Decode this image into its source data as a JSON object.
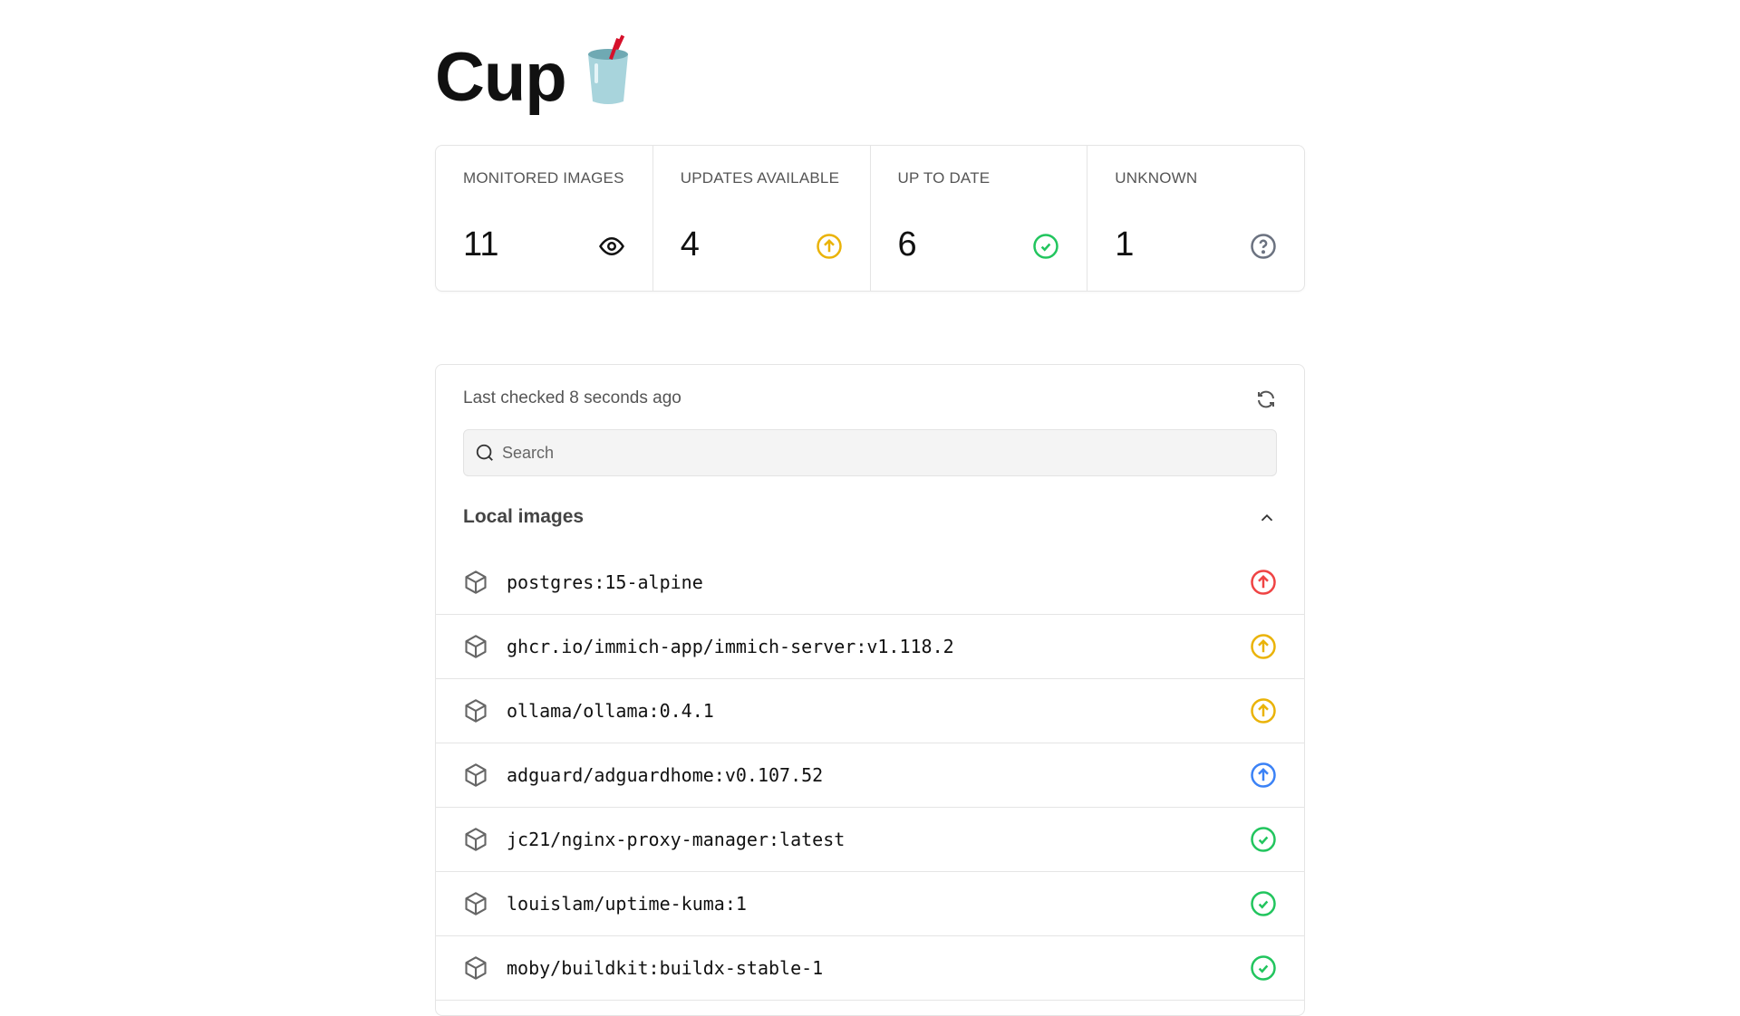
{
  "header": {
    "title": "Cup",
    "logo_emoji": "🥤"
  },
  "stats": [
    {
      "label": "MONITORED IMAGES",
      "value": "11",
      "icon": "eye-icon",
      "color": "#111111"
    },
    {
      "label": "UPDATES AVAILABLE",
      "value": "4",
      "icon": "arrow-up-circle-icon",
      "color": "#eab308"
    },
    {
      "label": "UP TO DATE",
      "value": "6",
      "icon": "check-circle-icon",
      "color": "#22c55e"
    },
    {
      "label": "UNKNOWN",
      "value": "1",
      "icon": "question-circle-icon",
      "color": "#6b7280"
    }
  ],
  "main": {
    "last_checked": "Last checked 8 seconds ago",
    "search_placeholder": "Search",
    "section_title": "Local images",
    "images": [
      {
        "name": "postgres:15-alpine",
        "status": "update-major",
        "color": "#ef4444"
      },
      {
        "name": "ghcr.io/immich-app/immich-server:v1.118.2",
        "status": "update-minor",
        "color": "#eab308"
      },
      {
        "name": "ollama/ollama:0.4.1",
        "status": "update-minor",
        "color": "#eab308"
      },
      {
        "name": "adguard/adguardhome:v0.107.52",
        "status": "update-patch",
        "color": "#3b82f6"
      },
      {
        "name": "jc21/nginx-proxy-manager:latest",
        "status": "up-to-date",
        "color": "#22c55e"
      },
      {
        "name": "louislam/uptime-kuma:1",
        "status": "up-to-date",
        "color": "#22c55e"
      },
      {
        "name": "moby/buildkit:buildx-stable-1",
        "status": "up-to-date",
        "color": "#22c55e"
      }
    ]
  }
}
